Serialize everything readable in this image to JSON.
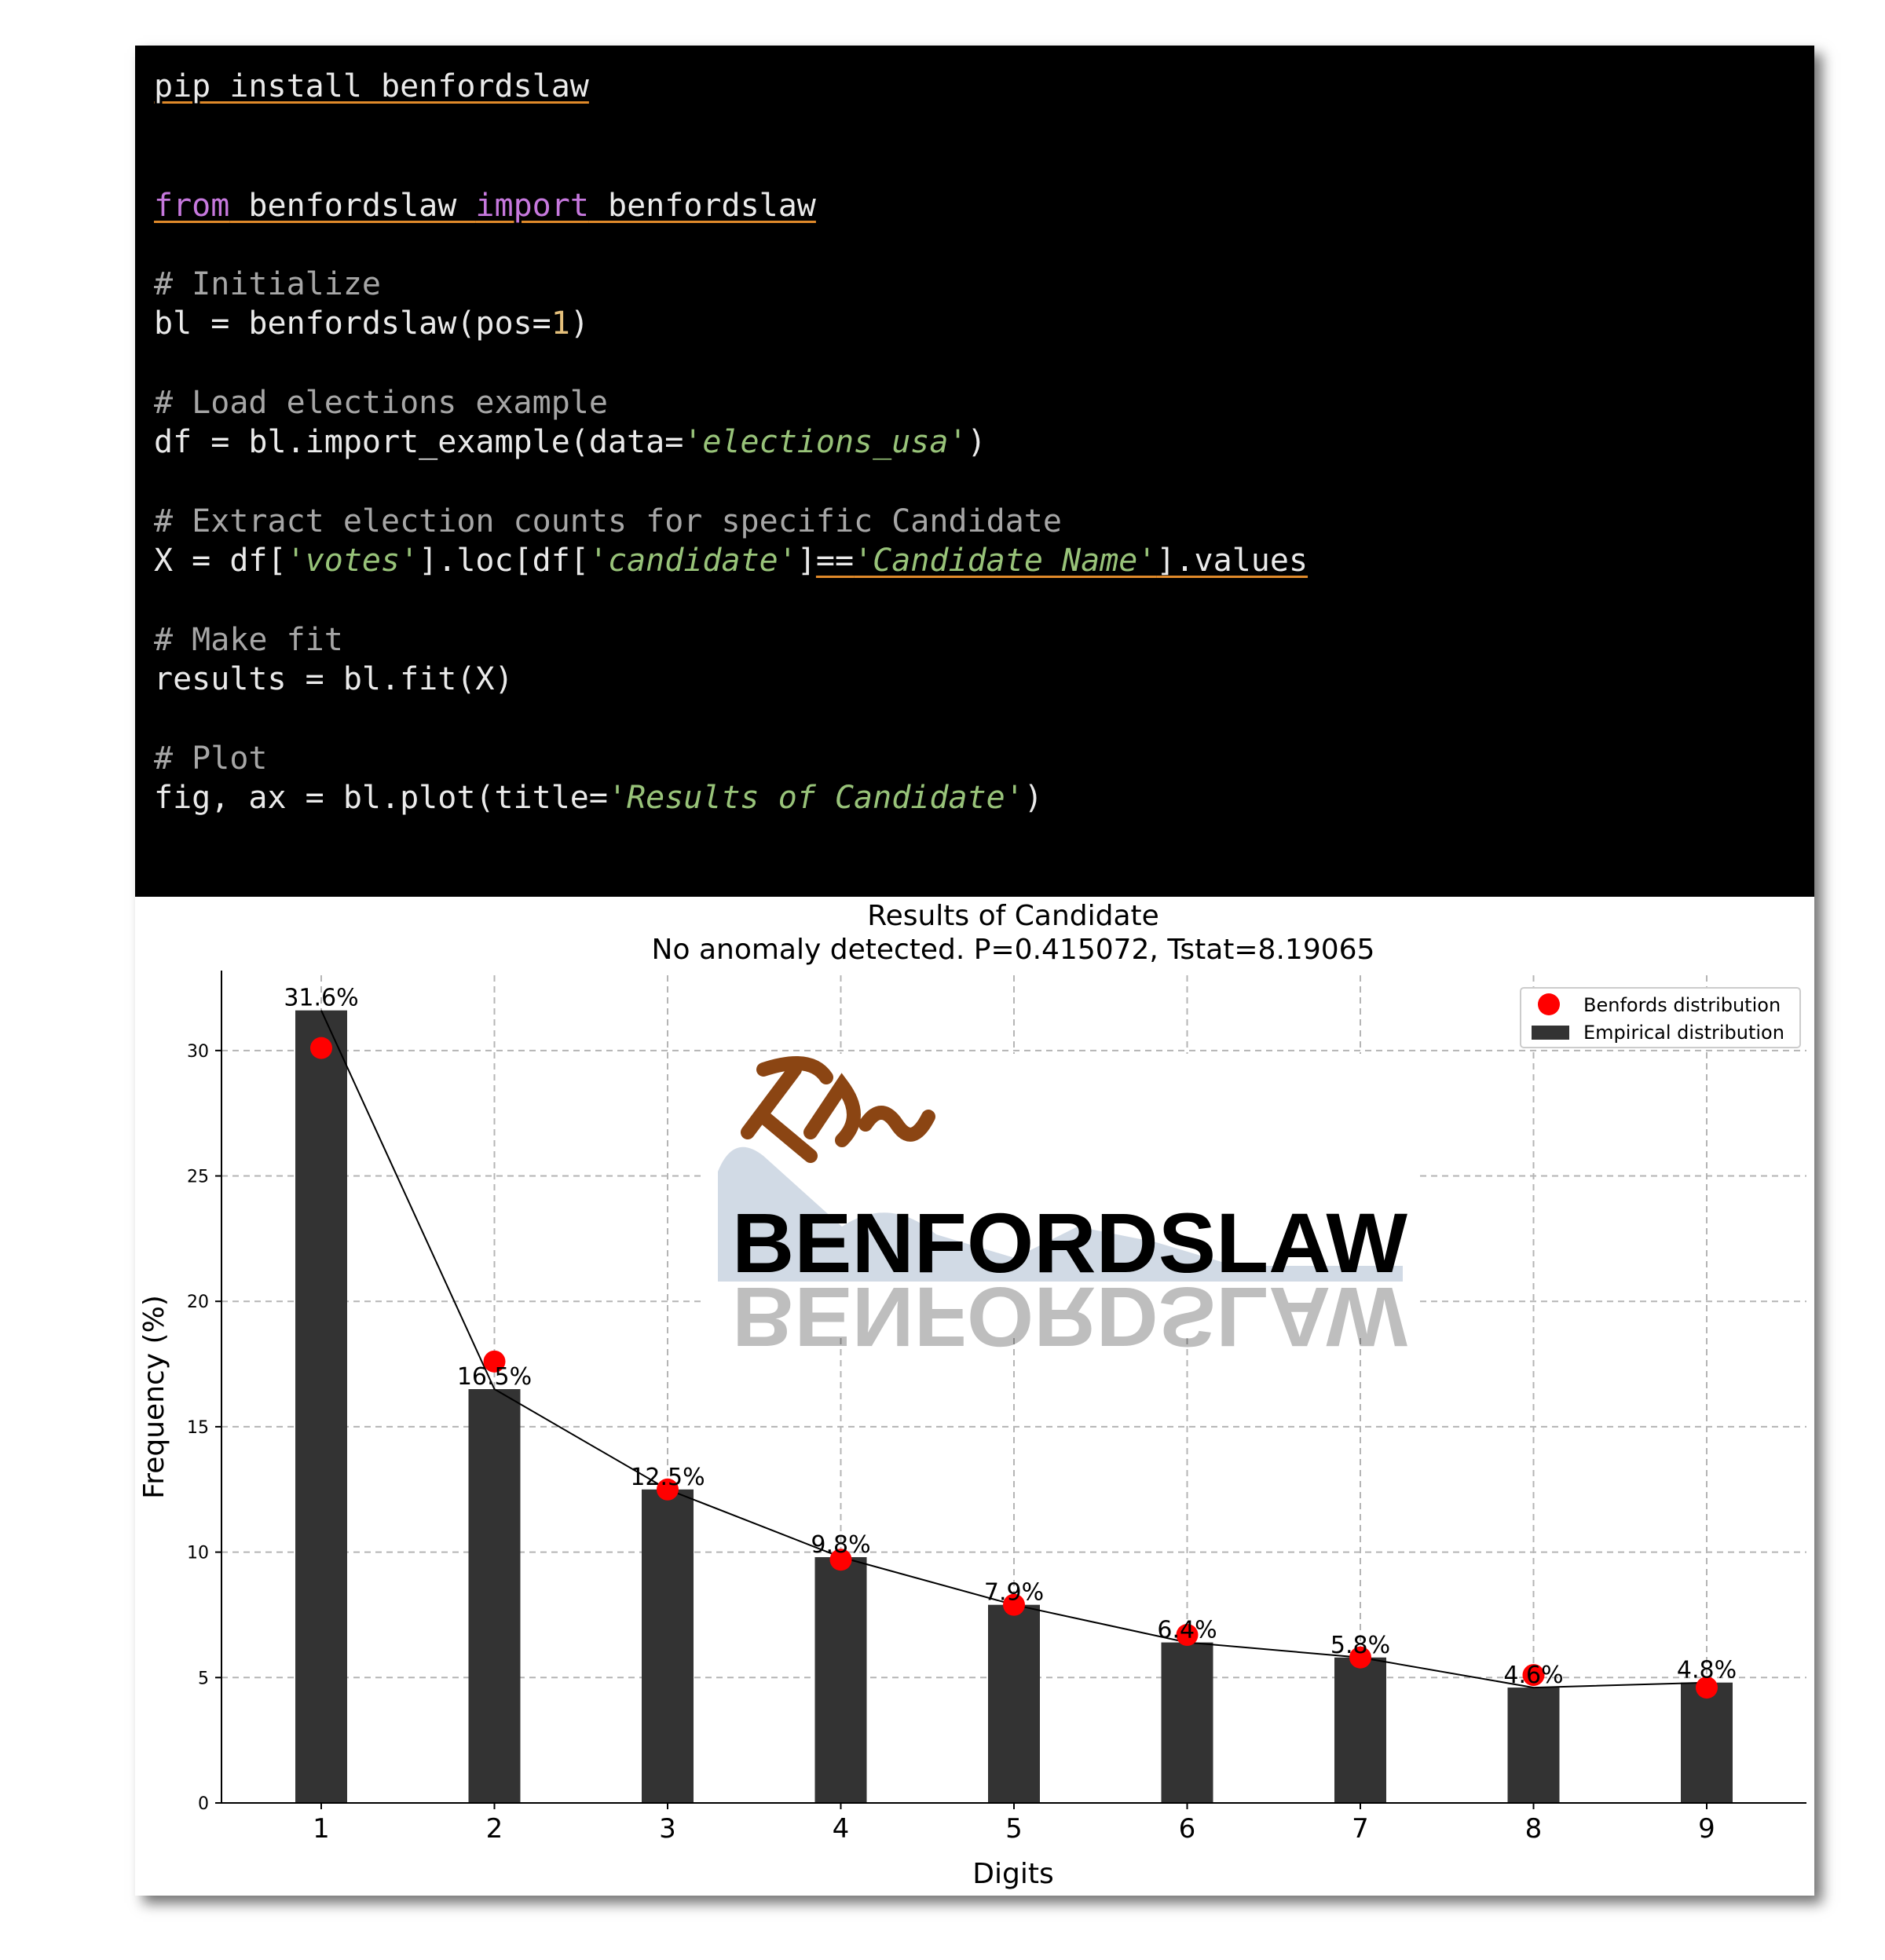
{
  "code": {
    "lines": [
      {
        "segments": [
          {
            "text": "pip install benfordslaw",
            "cls": "ul"
          }
        ]
      },
      {
        "segments": [
          {
            "text": "from",
            "cls": "kw ul"
          },
          {
            "text": " benfordslaw ",
            "cls": "ul"
          },
          {
            "text": "import",
            "cls": "kw ul"
          },
          {
            "text": " benfordslaw",
            "cls": "ul"
          }
        ]
      },
      {
        "segments": [
          {
            "text": "# Initialize",
            "cls": "comment"
          }
        ]
      },
      {
        "segments": [
          {
            "text": "bl = benfordslaw(pos=",
            "cls": ""
          },
          {
            "text": "1",
            "cls": "num"
          },
          {
            "text": ")",
            "cls": ""
          }
        ]
      },
      {
        "segments": [
          {
            "text": "# Load elections example",
            "cls": "comment"
          }
        ]
      },
      {
        "segments": [
          {
            "text": "df = bl.import_example(data=",
            "cls": ""
          },
          {
            "text": "'elections_usa'",
            "cls": "str"
          },
          {
            "text": ")",
            "cls": ""
          }
        ]
      },
      {
        "segments": [
          {
            "text": "# Extract election counts for specific Candidate",
            "cls": "comment"
          }
        ]
      },
      {
        "segments": [
          {
            "text": "X = df[",
            "cls": ""
          },
          {
            "text": "'votes'",
            "cls": "str"
          },
          {
            "text": "].loc[df[",
            "cls": ""
          },
          {
            "text": "'candidate'",
            "cls": "str"
          },
          {
            "text": "]",
            "cls": ""
          },
          {
            "text": "==",
            "cls": "ul"
          },
          {
            "text": "'Candidate Name'",
            "cls": "str ul"
          },
          {
            "text": "].values",
            "cls": "ul"
          }
        ]
      },
      {
        "segments": [
          {
            "text": "# Make fit",
            "cls": "comment"
          }
        ]
      },
      {
        "segments": [
          {
            "text": "results = bl.fit(X)",
            "cls": ""
          }
        ]
      },
      {
        "segments": [
          {
            "text": "# Plot",
            "cls": "comment"
          }
        ]
      },
      {
        "segments": [
          {
            "text": "fig, ax = bl.plot(title=",
            "cls": ""
          },
          {
            "text": "'Results of Candidate'",
            "cls": "str"
          },
          {
            "text": ")",
            "cls": ""
          }
        ]
      }
    ]
  },
  "chart_data": {
    "type": "bar",
    "title": "Results of Candidate",
    "subtitle": "No anomaly detected. P=0.415072, Tstat=8.19065",
    "xlabel": "Digits",
    "ylabel": "Frequency (%)",
    "categories": [
      "1",
      "2",
      "3",
      "4",
      "5",
      "6",
      "7",
      "8",
      "9"
    ],
    "ylim": [
      0,
      33
    ],
    "yticks": [
      0,
      5,
      10,
      15,
      20,
      25,
      30
    ],
    "grid": true,
    "legend_position": "top-right",
    "series": [
      {
        "name": "Empirical distribution",
        "type": "bar",
        "color": "#333333",
        "values": [
          31.6,
          16.5,
          12.5,
          9.8,
          7.9,
          6.4,
          5.8,
          4.6,
          4.8
        ],
        "labels": [
          "31.6%",
          "16.5%",
          "12.5%",
          "9.8%",
          "7.9%",
          "6.4%",
          "5.8%",
          "4.6%",
          "4.8%"
        ]
      },
      {
        "name": "Benfords distribution",
        "type": "scatter",
        "color": "#ff0000",
        "values": [
          30.1,
          17.6,
          12.5,
          9.7,
          7.9,
          6.7,
          5.8,
          5.1,
          4.6
        ]
      }
    ]
  },
  "logo": {
    "text": "BENFORDSLAW",
    "name": "benfordslaw-logo"
  }
}
